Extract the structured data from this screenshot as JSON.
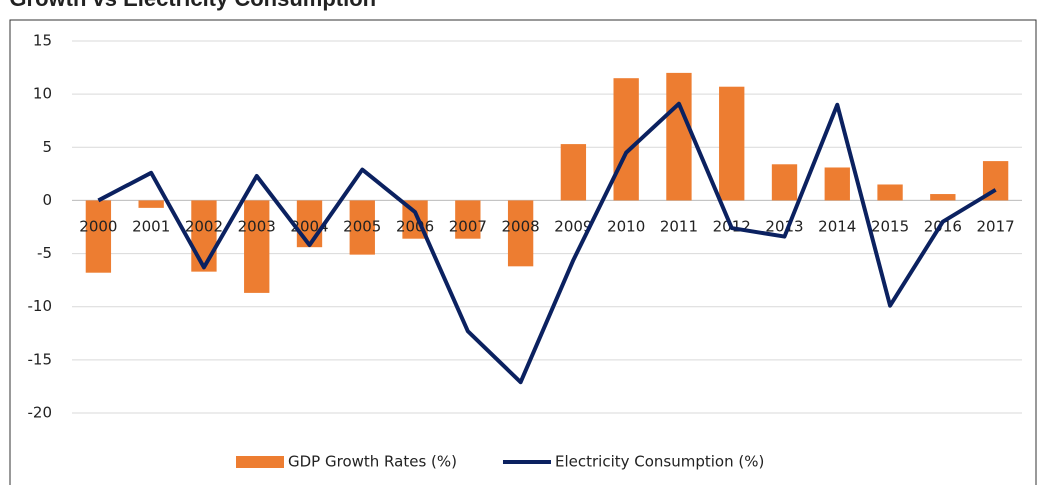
{
  "chart_data": {
    "type": "bar_line",
    "title": "GDP Growth vs Electricity Consumption",
    "categories": [
      "2000",
      "2001",
      "2002",
      "2003",
      "2004",
      "2005",
      "2006",
      "2007",
      "2008",
      "2009",
      "2010",
      "2011",
      "2012",
      "2013",
      "2014",
      "2015",
      "2016",
      "2017"
    ],
    "series": [
      {
        "name": "GDP Growth Rates (%)",
        "type": "bar",
        "color": "#ed7d31",
        "values": [
          -6.8,
          -0.7,
          -6.7,
          -8.7,
          -4.4,
          -5.1,
          -3.6,
          -3.6,
          -6.2,
          5.3,
          11.5,
          12,
          10.7,
          3.4,
          3.1,
          1.5,
          0.6,
          3.7
        ]
      },
      {
        "name": "Electricity Consumption (%)",
        "type": "line",
        "color": "#0b2160",
        "values": [
          0,
          2.6,
          -6.3,
          2.3,
          -4.2,
          2.9,
          -1.1,
          -12.3,
          -17.1,
          -5.6,
          4.5,
          9.1,
          -2.6,
          -3.4,
          9.0,
          -9.9,
          -2.0,
          1.0
        ]
      }
    ],
    "ylim": [
      -20,
      15
    ],
    "yticks": [
      -20,
      -15,
      -10,
      -5,
      0,
      5,
      10,
      15
    ],
    "grid": true,
    "legend": "bottom"
  }
}
